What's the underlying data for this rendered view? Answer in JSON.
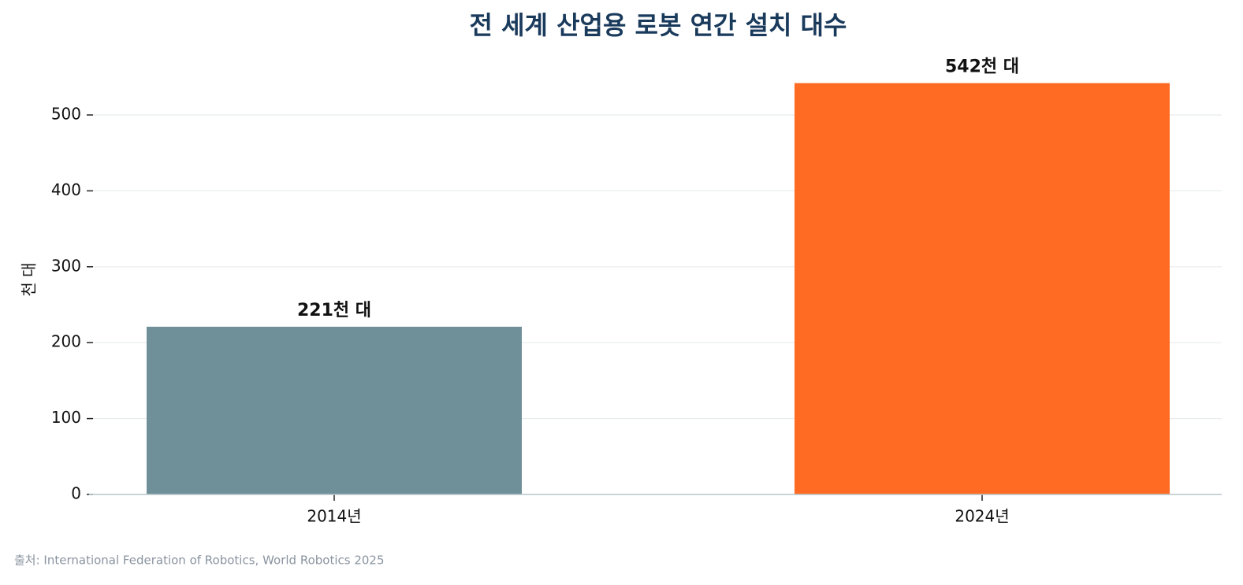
{
  "chart_data": {
    "type": "bar",
    "title": "전 세계 산업용 로봇 연간 설치 대수",
    "ylabel": "천 대",
    "categories": [
      "2014년",
      "2024년"
    ],
    "values": [
      221,
      542
    ],
    "value_labels": [
      "221천 대",
      "542천 대"
    ],
    "colors": [
      "#6f9098",
      "#ff6b22"
    ],
    "ylim": [
      0,
      569
    ],
    "yticks": [
      0,
      100,
      200,
      300,
      400,
      500
    ],
    "grid": true,
    "source": "출처: International Federation of Robotics, World Robotics 2025"
  }
}
